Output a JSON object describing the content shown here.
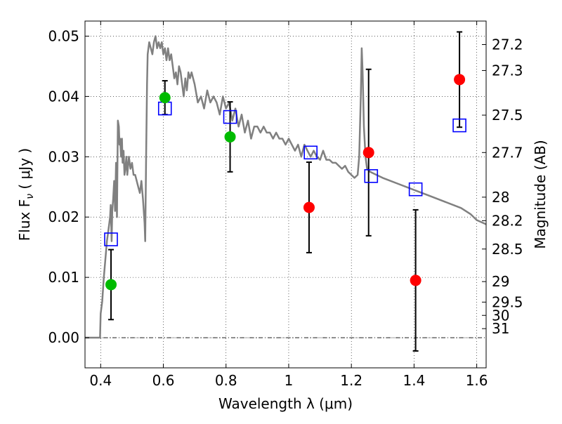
{
  "chart_data": {
    "type": "scatter",
    "xlabel": "Wavelength  λ (μm)",
    "ylabel": "Flux  F",
    "ylabel_sub": "ν",
    "ylabel_unit": "  ( μJy )",
    "y2label": "Magnitude (AB)",
    "xlim": [
      0.35,
      1.63
    ],
    "ylim": [
      -0.005,
      0.0525
    ],
    "x_ticks": [
      0.4,
      0.6,
      0.8,
      1.0,
      1.2,
      1.4,
      1.6
    ],
    "x_tick_labels": [
      "0.4",
      "0.6",
      "0.8",
      "1",
      "1.2",
      "1.4",
      "1.6"
    ],
    "y_ticks": [
      0.0,
      0.01,
      0.02,
      0.03,
      0.04,
      0.05
    ],
    "y_tick_labels": [
      "0.00",
      "0.01",
      "0.02",
      "0.03",
      "0.04",
      "0.05"
    ],
    "y2_ticks": [
      {
        "label": "27.2",
        "flux": 0.0486
      },
      {
        "label": "27.3",
        "flux": 0.0443
      },
      {
        "label": "27.5",
        "flux": 0.0369
      },
      {
        "label": "27.7",
        "flux": 0.0307
      },
      {
        "label": "28",
        "flux": 0.0233
      },
      {
        "label": "28.2",
        "flux": 0.0194
      },
      {
        "label": "28.5",
        "flux": 0.0147
      },
      {
        "label": "29",
        "flux": 0.0093
      },
      {
        "label": "29.5",
        "flux": 0.0059
      },
      {
        "label": "30",
        "flux": 0.0037
      },
      {
        "label": "31",
        "flux": 0.0015
      }
    ],
    "grid": true,
    "zero_line": true,
    "colors": {
      "model": "#808080",
      "green": "#00bb00",
      "red": "#ff0000",
      "blue": "#0000ff",
      "errorbar": "#000000"
    },
    "model_spectrum": {
      "x": [
        0.35,
        0.398,
        0.4,
        0.405,
        0.41,
        0.415,
        0.42,
        0.425,
        0.43,
        0.432,
        0.435,
        0.437,
        0.44,
        0.443,
        0.446,
        0.449,
        0.452,
        0.455,
        0.458,
        0.46,
        0.462,
        0.465,
        0.468,
        0.47,
        0.473,
        0.476,
        0.479,
        0.482,
        0.485,
        0.49,
        0.495,
        0.5,
        0.505,
        0.51,
        0.515,
        0.52,
        0.525,
        0.53,
        0.535,
        0.54,
        0.542,
        0.545,
        0.548,
        0.55,
        0.555,
        0.56,
        0.565,
        0.57,
        0.575,
        0.58,
        0.585,
        0.59,
        0.595,
        0.6,
        0.605,
        0.61,
        0.615,
        0.62,
        0.625,
        0.63,
        0.635,
        0.64,
        0.645,
        0.65,
        0.655,
        0.66,
        0.665,
        0.67,
        0.675,
        0.68,
        0.685,
        0.69,
        0.7,
        0.71,
        0.72,
        0.73,
        0.74,
        0.75,
        0.76,
        0.77,
        0.78,
        0.79,
        0.8,
        0.81,
        0.82,
        0.83,
        0.84,
        0.85,
        0.86,
        0.87,
        0.88,
        0.89,
        0.9,
        0.91,
        0.92,
        0.93,
        0.94,
        0.95,
        0.96,
        0.97,
        0.98,
        0.99,
        1.0,
        1.01,
        1.02,
        1.03,
        1.04,
        1.05,
        1.06,
        1.07,
        1.08,
        1.09,
        1.1,
        1.11,
        1.12,
        1.13,
        1.14,
        1.15,
        1.16,
        1.17,
        1.18,
        1.19,
        1.2,
        1.21,
        1.22,
        1.225,
        1.23,
        1.233,
        1.236,
        1.24,
        1.245,
        1.25,
        1.26,
        1.28,
        1.3,
        1.35,
        1.4,
        1.45,
        1.5,
        1.55,
        1.58,
        1.6,
        1.63
      ],
      "y": [
        0.0,
        0.0,
        0.004,
        0.006,
        0.01,
        0.013,
        0.016,
        0.018,
        0.02,
        0.022,
        0.016,
        0.021,
        0.023,
        0.026,
        0.021,
        0.029,
        0.02,
        0.036,
        0.035,
        0.032,
        0.033,
        0.03,
        0.033,
        0.029,
        0.031,
        0.027,
        0.028,
        0.03,
        0.027,
        0.03,
        0.028,
        0.029,
        0.027,
        0.027,
        0.026,
        0.025,
        0.024,
        0.026,
        0.023,
        0.019,
        0.016,
        0.03,
        0.042,
        0.047,
        0.049,
        0.048,
        0.047,
        0.049,
        0.05,
        0.048,
        0.049,
        0.048,
        0.049,
        0.047,
        0.048,
        0.046,
        0.048,
        0.046,
        0.047,
        0.045,
        0.043,
        0.044,
        0.042,
        0.045,
        0.044,
        0.042,
        0.04,
        0.043,
        0.041,
        0.044,
        0.043,
        0.044,
        0.042,
        0.039,
        0.04,
        0.038,
        0.041,
        0.039,
        0.04,
        0.039,
        0.037,
        0.04,
        0.038,
        0.039,
        0.036,
        0.038,
        0.035,
        0.037,
        0.034,
        0.036,
        0.033,
        0.035,
        0.035,
        0.034,
        0.035,
        0.034,
        0.034,
        0.033,
        0.034,
        0.033,
        0.033,
        0.032,
        0.033,
        0.032,
        0.031,
        0.032,
        0.03,
        0.032,
        0.031,
        0.03,
        0.031,
        0.03,
        0.0295,
        0.031,
        0.0295,
        0.0295,
        0.029,
        0.029,
        0.0285,
        0.028,
        0.0285,
        0.0275,
        0.027,
        0.0265,
        0.027,
        0.03,
        0.04,
        0.048,
        0.044,
        0.035,
        0.03,
        0.028,
        0.0275,
        0.027,
        0.0265,
        0.0255,
        0.0245,
        0.0235,
        0.0225,
        0.0215,
        0.0205,
        0.0195,
        0.0188
      ]
    },
    "green_points": [
      {
        "x": 0.433,
        "y": 0.0088,
        "err_low": 0.0058,
        "err_high": 0.0058
      },
      {
        "x": 0.605,
        "y": 0.0398,
        "err_low": 0.0028,
        "err_high": 0.0028
      },
      {
        "x": 0.813,
        "y": 0.0333,
        "err_low": 0.0058,
        "err_high": 0.0058
      }
    ],
    "red_points": [
      {
        "x": 1.065,
        "y": 0.0216,
        "err_low": 0.0075,
        "err_high": 0.0075
      },
      {
        "x": 1.255,
        "y": 0.0307,
        "err_low": 0.0138,
        "err_high": 0.0138
      },
      {
        "x": 1.405,
        "y": 0.0095,
        "err_low": 0.0117,
        "err_high": 0.0117
      },
      {
        "x": 1.545,
        "y": 0.0428,
        "err_low": 0.0079,
        "err_high": 0.0079
      }
    ],
    "blue_squares": [
      {
        "x": 0.433,
        "y": 0.0163
      },
      {
        "x": 0.605,
        "y": 0.038
      },
      {
        "x": 0.813,
        "y": 0.0366
      },
      {
        "x": 1.07,
        "y": 0.0307
      },
      {
        "x": 1.263,
        "y": 0.0268
      },
      {
        "x": 1.405,
        "y": 0.0246
      },
      {
        "x": 1.545,
        "y": 0.0352
      }
    ]
  }
}
